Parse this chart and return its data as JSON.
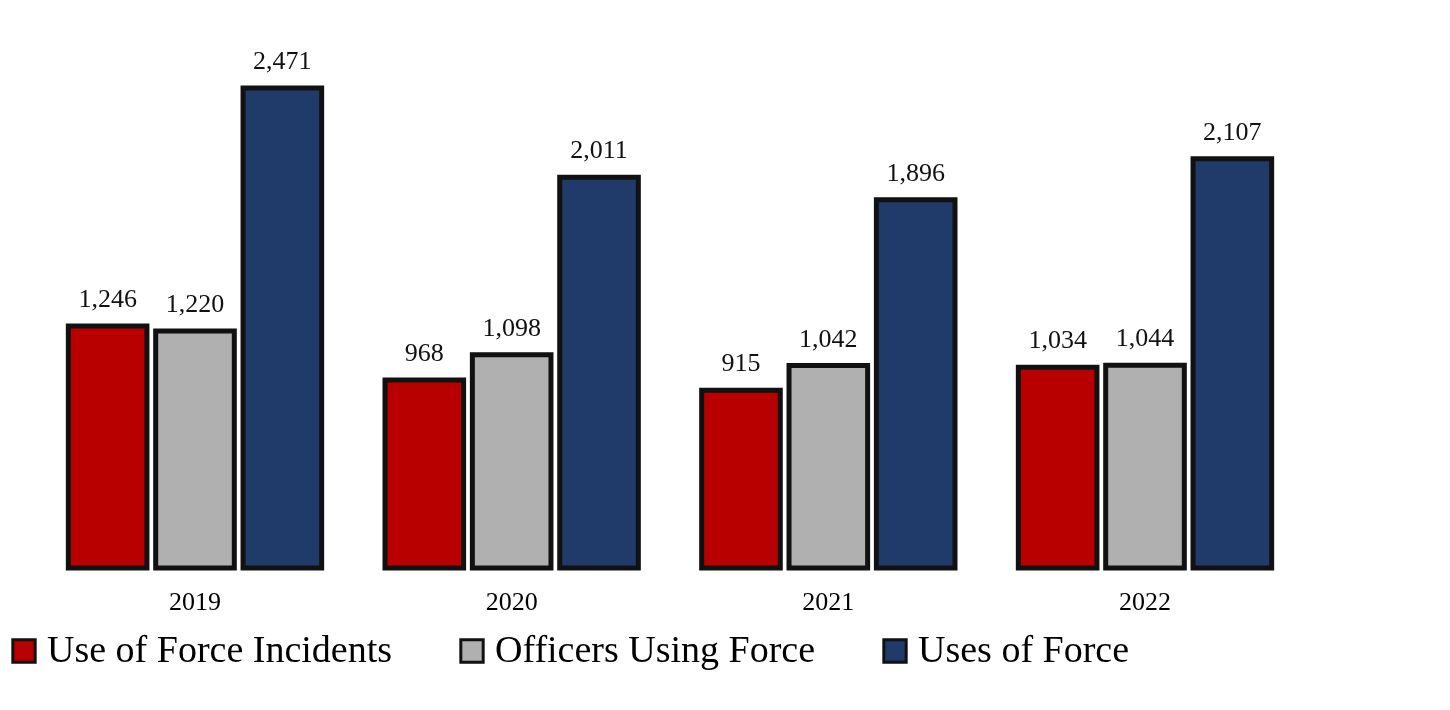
{
  "chart_data": {
    "type": "bar",
    "categories": [
      "2019",
      "2020",
      "2021",
      "2022"
    ],
    "series": [
      {
        "name": "Use of Force Incidents",
        "color": "#b80000",
        "values": [
          1246,
          968,
          915,
          1034
        ],
        "value_labels": [
          "1,246",
          "968",
          "915",
          "1,034"
        ]
      },
      {
        "name": "Officers Using Force",
        "color": "#b0b0b0",
        "values": [
          1220,
          1098,
          1042,
          1044
        ],
        "value_labels": [
          "1,220",
          "1,098",
          "1,042",
          "1,044"
        ]
      },
      {
        "name": "Uses of Force",
        "color": "#203a6a",
        "values": [
          2471,
          2011,
          1896,
          2107
        ],
        "value_labels": [
          "2,471",
          "2,011",
          "1,896",
          "2,107"
        ]
      }
    ],
    "legend": "bottom"
  }
}
